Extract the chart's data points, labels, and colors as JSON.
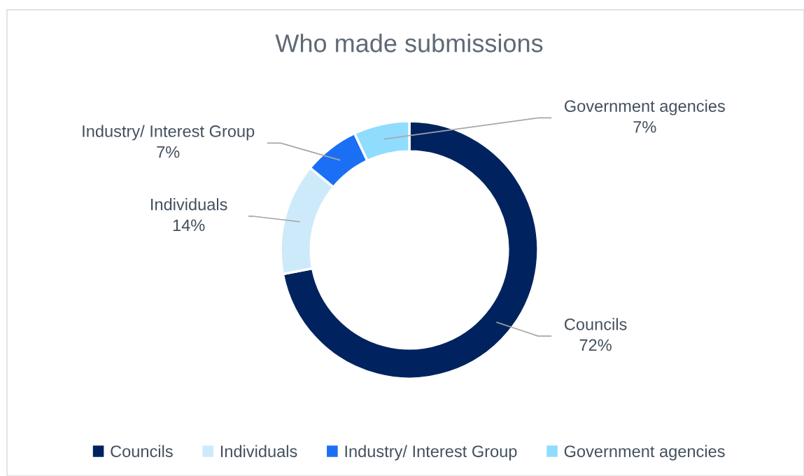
{
  "chart_data": {
    "type": "donut",
    "title": "Who made submissions",
    "categories": [
      "Councils",
      "Individuals",
      "Industry/ Interest Group",
      "Government agencies"
    ],
    "values": [
      72,
      14,
      7,
      7
    ],
    "colors": [
      "#002360",
      "#cdeafa",
      "#1a6ff5",
      "#8fdcfe"
    ],
    "value_labels": [
      "72%",
      "14%",
      "7%",
      "7%"
    ],
    "legend": "bottom"
  }
}
